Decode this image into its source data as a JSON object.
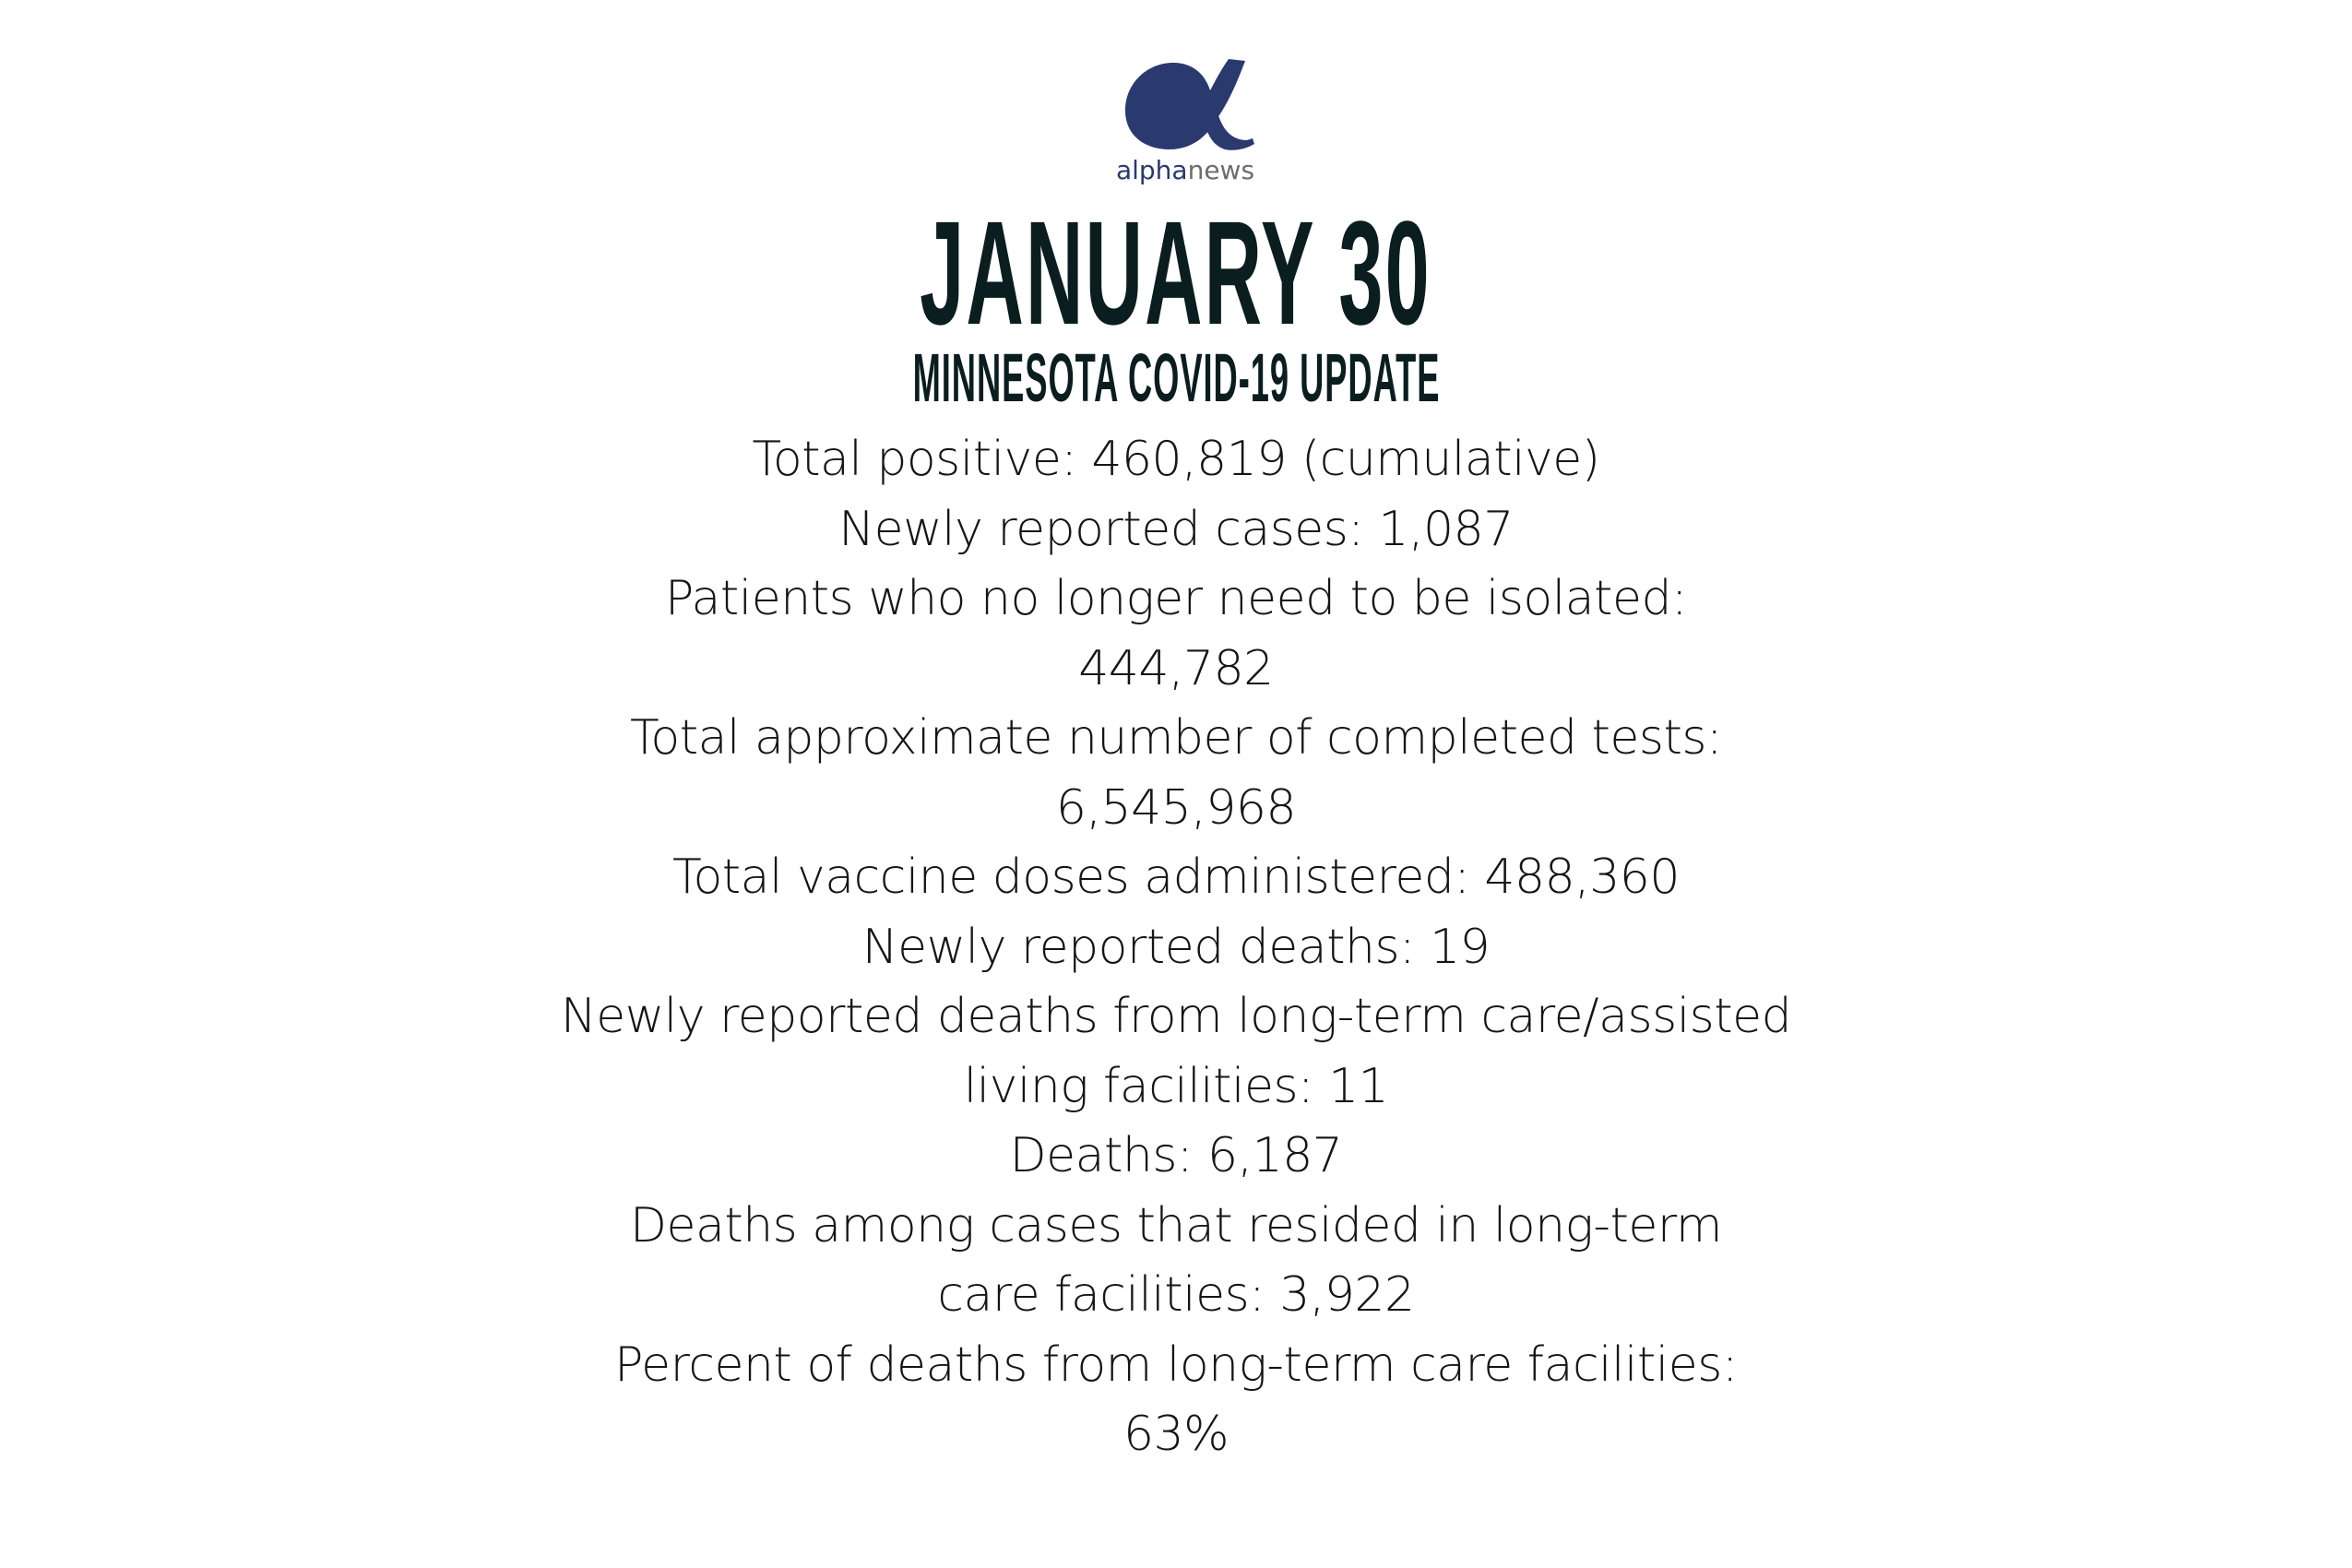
{
  "logo": {
    "text_primary": "alpha",
    "text_secondary": "news",
    "colors": {
      "alpha": "#2a3a6e",
      "news": "#6d6d6d"
    }
  },
  "header": {
    "title": "JANUARY 30",
    "subtitle": "MINNESOTA COVID-19 UPDATE"
  },
  "lines": [
    "Total positive: 460,819 (cumulative)",
    "Newly reported cases: 1,087",
    "Patients who no longer need to be isolated:",
    "444,782",
    "Total approximate number of completed tests:",
    "6,545,968",
    "Total vaccine doses administered: 488,360",
    "Newly reported deaths: 19",
    "Newly reported deaths from long-term care/assisted",
    "living facilities: 11",
    "Deaths: 6,187",
    "Deaths among cases that resided in long-term",
    "care facilities: 3,922",
    "Percent of deaths from long-term care facilities:",
    "63%"
  ]
}
